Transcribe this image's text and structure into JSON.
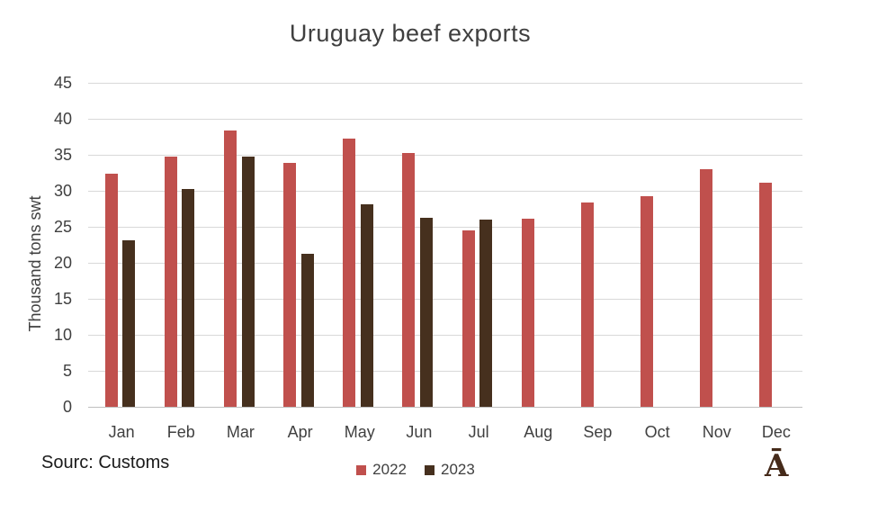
{
  "title": "Uruguay beef exports",
  "source_note": "Sourc: Customs",
  "logo_text": "Ā",
  "colors": {
    "series_2022": "#c0504d",
    "series_2023": "#46301e",
    "axis_text": "#404040",
    "gridline": "#d9d9d9",
    "axis_line": "#bfbfbf",
    "source_text": "#1a1a1a",
    "logo": "#452a1a"
  },
  "chart_data": {
    "type": "bar",
    "title": "Uruguay beef exports",
    "xlabel": "",
    "ylabel": "Thousand tons swt",
    "categories": [
      "Jan",
      "Feb",
      "Mar",
      "Apr",
      "May",
      "Jun",
      "Jul",
      "Aug",
      "Sep",
      "Oct",
      "Nov",
      "Dec"
    ],
    "series": [
      {
        "name": "2022",
        "color": "#c0504d",
        "values": [
          32.4,
          34.8,
          38.4,
          33.9,
          37.3,
          35.2,
          24.5,
          26.1,
          28.4,
          29.3,
          33.0,
          31.1
        ]
      },
      {
        "name": "2023",
        "color": "#46301e",
        "values": [
          23.1,
          30.3,
          34.7,
          21.2,
          28.1,
          26.3,
          26.0,
          null,
          null,
          null,
          null,
          null
        ]
      }
    ],
    "ylim": [
      0,
      45
    ],
    "ytick_step": 5,
    "grid": "horizontal",
    "legend_position": "bottom"
  }
}
